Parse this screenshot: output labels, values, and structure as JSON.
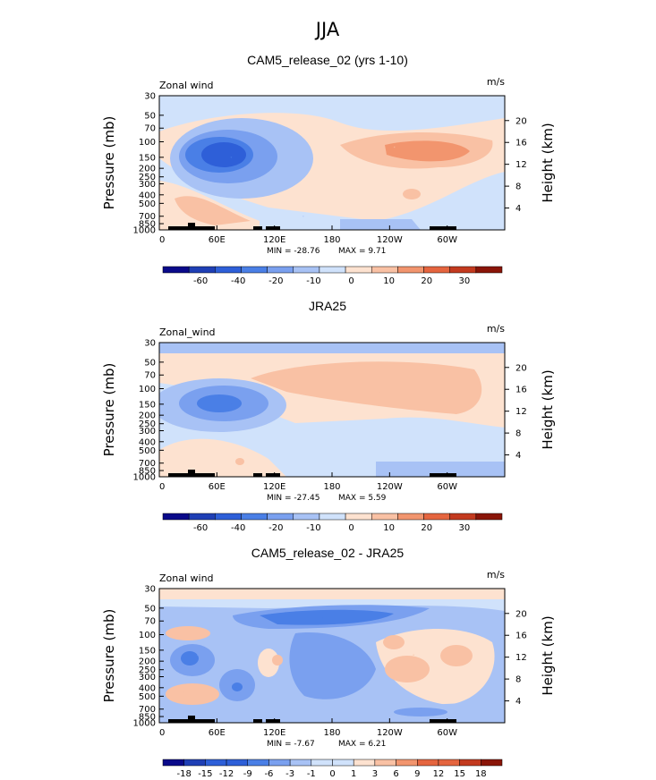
{
  "figure_title": "JJA",
  "chart_data": [
    {
      "type": "heatmap",
      "title": "CAM5_release_02 (yrs 1-10)",
      "variable": "Zonal wind",
      "units": "m/s",
      "ylabel": "Pressure (mb)",
      "ylabel_right": "Height (km)",
      "x_ticks": [
        "0",
        "60E",
        "120E",
        "180",
        "120W",
        "60W"
      ],
      "x_range": [
        0,
        360
      ],
      "pressure_ticks": [
        30,
        50,
        70,
        100,
        150,
        200,
        250,
        300,
        400,
        500,
        700,
        850,
        1000
      ],
      "height_ticks": [
        4,
        8,
        12,
        16,
        20
      ],
      "min": -28.76,
      "max": 9.71,
      "min_text": "MIN = -28.76",
      "max_text": "MAX = 9.71",
      "colorbar_labels": [
        "-60",
        "-40",
        "-20",
        "-10",
        "0",
        "10",
        "20",
        "30"
      ],
      "features": [
        {
          "lon": 75,
          "p": 150,
          "value": -28
        },
        {
          "lon": 245,
          "p": 115,
          "value": 9
        },
        {
          "lon": 45,
          "p": 600,
          "value": 6
        },
        {
          "lon": 150,
          "p": 700,
          "value": -6
        }
      ]
    },
    {
      "type": "heatmap",
      "title": "JRA25",
      "variable": "Zonal_wind",
      "units": "m/s",
      "ylabel": "Pressure (mb)",
      "ylabel_right": "Height (km)",
      "x_ticks": [
        "0",
        "60E",
        "120E",
        "180",
        "120W",
        "60W"
      ],
      "x_range": [
        0,
        360
      ],
      "pressure_ticks": [
        30,
        50,
        70,
        100,
        150,
        200,
        250,
        300,
        400,
        500,
        700,
        850,
        1000
      ],
      "height_ticks": [
        4,
        8,
        12,
        16,
        20
      ],
      "min": -27.45,
      "max": 5.59,
      "min_text": "MIN = -27.45",
      "max_text": "MAX = 5.59",
      "colorbar_labels": [
        "-60",
        "-40",
        "-20",
        "-10",
        "0",
        "10",
        "20",
        "30"
      ],
      "features": [
        {
          "lon": 75,
          "p": 150,
          "value": -27
        },
        {
          "lon": 230,
          "p": 110,
          "value": 5
        },
        {
          "lon": 80,
          "p": 600,
          "value": 4
        }
      ]
    },
    {
      "type": "heatmap",
      "title": "CAM5_release_02 - JRA25",
      "variable": "Zonal wind",
      "units": "m/s",
      "ylabel": "Pressure (mb)",
      "ylabel_right": "Height (km)",
      "x_ticks": [
        "0",
        "60E",
        "120E",
        "180",
        "120W",
        "60W"
      ],
      "x_range": [
        0,
        360
      ],
      "pressure_ticks": [
        30,
        50,
        70,
        100,
        150,
        200,
        250,
        300,
        400,
        500,
        700,
        850,
        1000
      ],
      "height_ticks": [
        4,
        8,
        12,
        16,
        20
      ],
      "min": -7.67,
      "max": 6.21,
      "min_text": "MIN = -7.67",
      "max_text": "MAX = 6.21",
      "colorbar_labels": [
        "-18",
        "-15",
        "-12",
        "-9",
        "-6",
        "-3",
        "-1",
        "0",
        "1",
        "3",
        "6",
        "9",
        "12",
        "15",
        "18"
      ],
      "features": [
        {
          "lon": 170,
          "p": 65,
          "value": -7
        },
        {
          "lon": 265,
          "p": 170,
          "value": 5
        },
        {
          "lon": 40,
          "p": 170,
          "value": -5
        },
        {
          "lon": 25,
          "p": 450,
          "value": 4
        },
        {
          "lon": 80,
          "p": 400,
          "value": -6
        }
      ]
    }
  ],
  "colors": {
    "diverging": [
      "#0a0a8a",
      "#1f3fb5",
      "#2e5fd8",
      "#4a7fe6",
      "#7aa0ef",
      "#a8c2f5",
      "#d0e2fb",
      "#fde2d0",
      "#f9c1a4",
      "#f2956e",
      "#e5653f",
      "#c33a1f",
      "#8a1508"
    ],
    "topography": "#000000"
  }
}
